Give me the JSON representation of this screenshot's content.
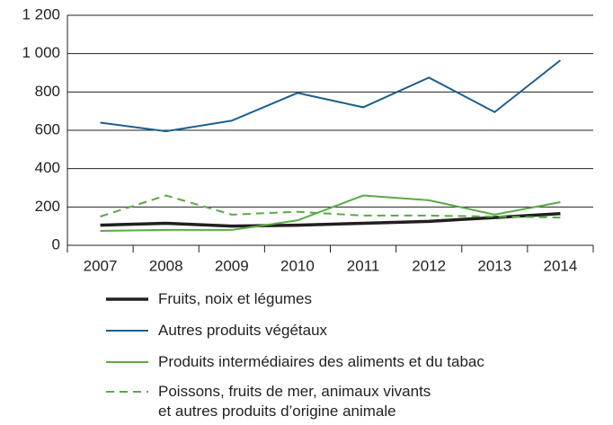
{
  "chart_data": {
    "type": "line",
    "categories": [
      "2007",
      "2008",
      "2009",
      "2010",
      "2011",
      "2012",
      "2013",
      "2014"
    ],
    "series": [
      {
        "name": "Fruits, noix et légumes",
        "color": "#231f20",
        "dash": false,
        "width": 3.5,
        "values": [
          105,
          115,
          100,
          105,
          115,
          125,
          145,
          165
        ]
      },
      {
        "name": "Autres produits végétaux",
        "color": "#1b5f8c",
        "dash": false,
        "width": 2,
        "values": [
          640,
          595,
          650,
          795,
          720,
          875,
          695,
          965
        ]
      },
      {
        "name": "Produits intermédiaires des aliments et du tabac",
        "color": "#5aaa46",
        "dash": false,
        "width": 2,
        "values": [
          75,
          80,
          80,
          130,
          260,
          235,
          160,
          225
        ]
      },
      {
        "name": "Poissons, fruits de mer, animaux vivants\net autres produits d’origine animale",
        "color": "#5aaa46",
        "dash": true,
        "width": 2,
        "values": [
          150,
          260,
          160,
          175,
          155,
          155,
          150,
          145
        ]
      }
    ],
    "ylim": [
      0,
      1200
    ],
    "yticks": [
      0,
      200,
      400,
      600,
      800,
      {
        "value": 1000,
        "label": "1 000"
      },
      {
        "value": 1200,
        "label": "1 200"
      }
    ],
    "grid": true
  }
}
